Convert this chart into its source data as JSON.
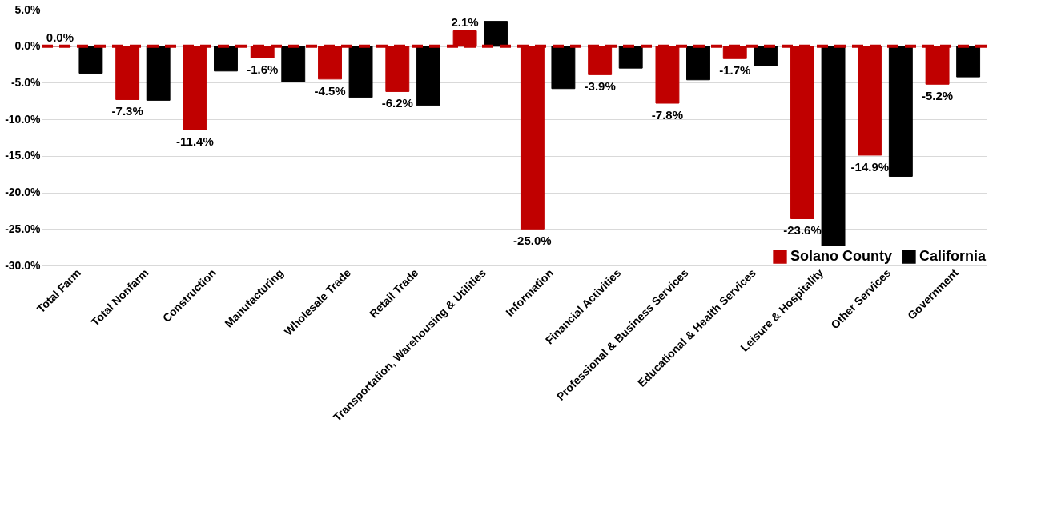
{
  "chart_data": {
    "type": "bar",
    "categories": [
      "Total Farm",
      "Total Nonfarm",
      "Construction",
      "Manufacturing",
      "Wholesale Trade",
      "Retail Trade",
      "Transportation, Warehousing & Utilities",
      "Information",
      "Financial Activities",
      "Professional & Business Services",
      "Educational & Health Services",
      "Leisure & Hospitality",
      "Other Services",
      "Government"
    ],
    "series": [
      {
        "name": "Solano County",
        "color": "#c00000",
        "values": [
          0.0,
          -7.3,
          -11.4,
          -1.6,
          -4.5,
          -6.2,
          2.1,
          -25.0,
          -3.9,
          -7.8,
          -1.7,
          -23.6,
          -14.9,
          -5.2
        ],
        "value_labels": [
          "0.0%",
          "-7.3%",
          "-11.4%",
          "-1.6%",
          "-4.5%",
          "-6.2%",
          "2.1%",
          "-25.0%",
          "-3.9%",
          "-7.8%",
          "-1.7%",
          "-23.6%",
          "-14.9%",
          "-5.2%"
        ]
      },
      {
        "name": "California",
        "color": "#000000",
        "values": [
          -3.7,
          -7.4,
          -3.4,
          -4.9,
          -7.0,
          -8.1,
          3.4,
          -5.8,
          -3.0,
          -4.6,
          -2.7,
          -27.3,
          -17.8,
          -4.2
        ]
      }
    ],
    "ylim": [
      -30,
      5
    ],
    "yticks": [
      {
        "value": 5,
        "label": "5.0%"
      },
      {
        "value": 0,
        "label": "0.0%"
      },
      {
        "value": -5,
        "label": "-5.0%"
      },
      {
        "value": -10,
        "label": "-10.0%"
      },
      {
        "value": -15,
        "label": "-15.0%"
      },
      {
        "value": -20,
        "label": "-20.0%"
      },
      {
        "value": -25,
        "label": "-25.0%"
      },
      {
        "value": -30,
        "label": "-30.0%"
      }
    ],
    "ref_lines": [
      {
        "axis": "y",
        "value": 0,
        "color": "#c00000",
        "line_style": "dashed"
      }
    ],
    "grid": "y",
    "legend": "bottom right"
  }
}
